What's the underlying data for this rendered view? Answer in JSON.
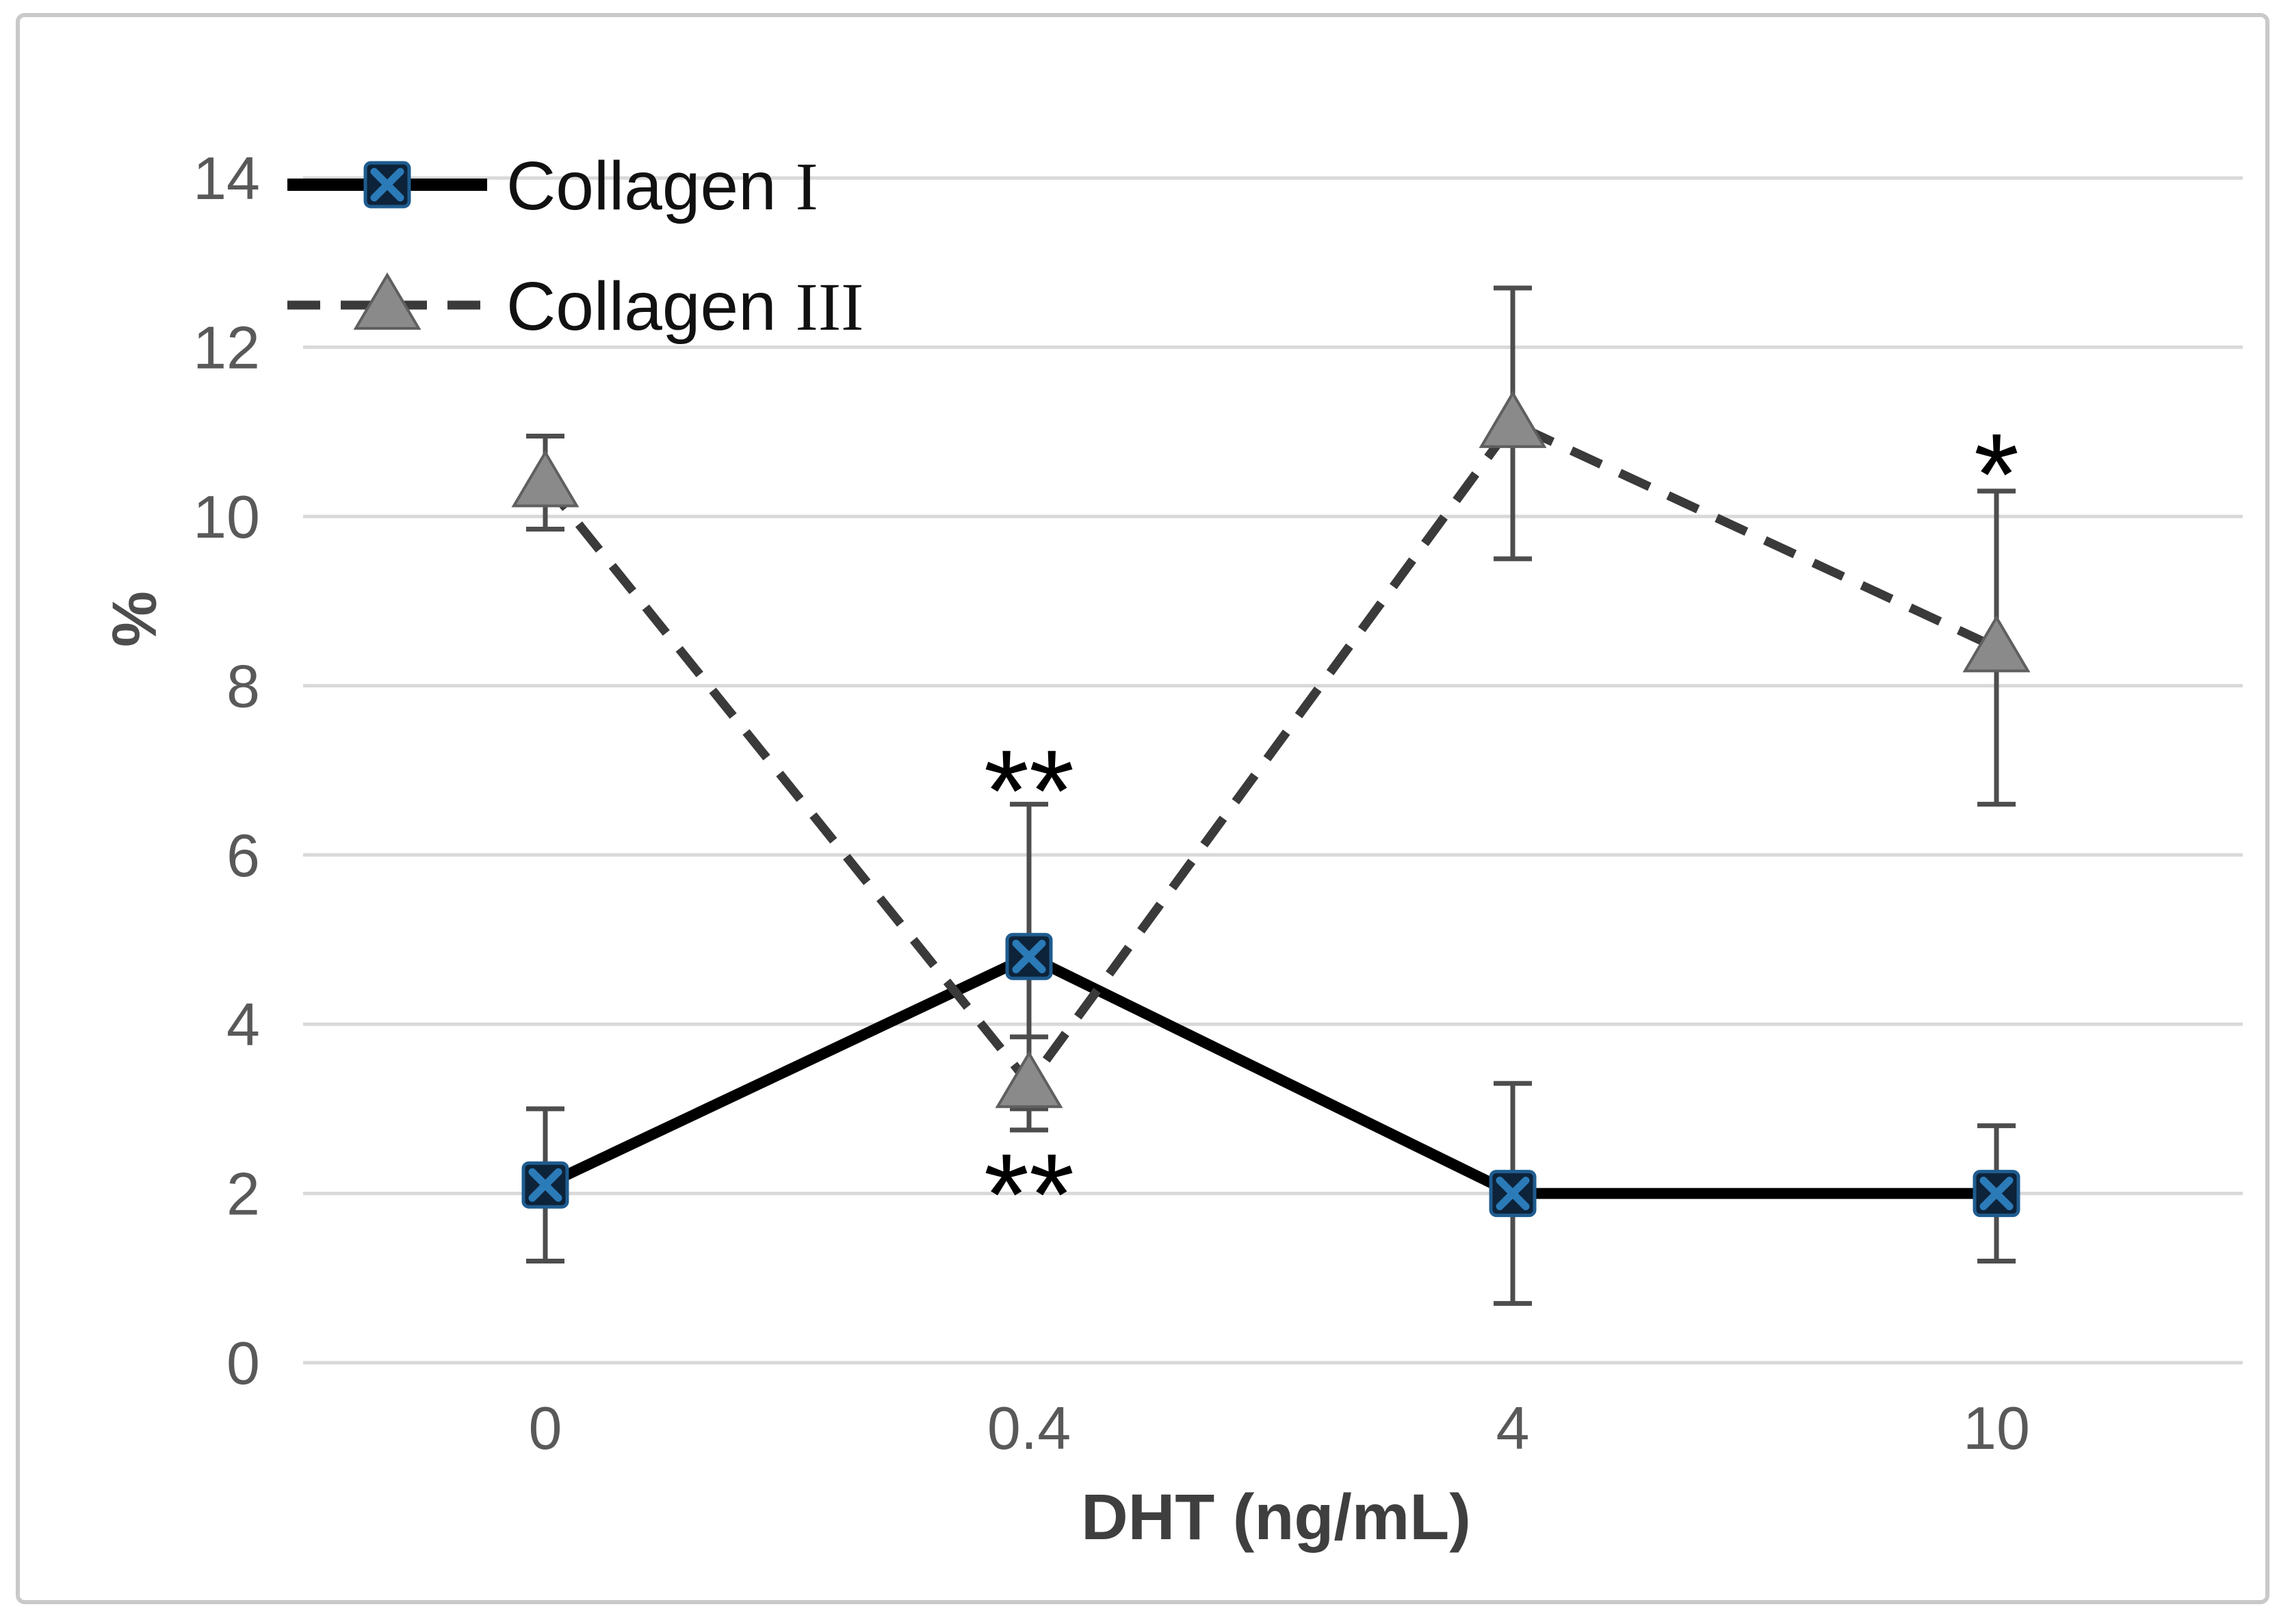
{
  "chart_data": {
    "type": "line",
    "title": "",
    "xlabel": "DHT (ng/mL)",
    "ylabel": "%",
    "x_axis_type": "categorical",
    "categories": [
      "0",
      "0.4",
      "4",
      "10"
    ],
    "y_ticks": [
      0,
      2,
      4,
      6,
      8,
      10,
      12,
      14
    ],
    "ylim": [
      0,
      14
    ],
    "grid": "horizontal",
    "legend_position": "top-left-inside",
    "series": [
      {
        "name": "Collagen I",
        "line_style": "solid",
        "line_color": "#000000",
        "marker": "square-with-x",
        "marker_fill": "#0d2339",
        "marker_border": "#1f5c8f",
        "marker_x_color": "#2b7bb9",
        "values": [
          2.1,
          4.8,
          2.0,
          2.0
        ],
        "error_bars": [
          0.9,
          1.8,
          1.3,
          0.8
        ]
      },
      {
        "name": "Collagen III",
        "line_style": "dashed",
        "line_color": "#3a3a3a",
        "marker": "triangle",
        "marker_fill": "#8a8a8a",
        "marker_border": "#5f5f5f",
        "values": [
          10.4,
          3.3,
          11.1,
          8.45
        ],
        "error_bars": [
          0.55,
          0.55,
          1.6,
          1.85
        ]
      }
    ],
    "annotations": [
      {
        "text": "**",
        "category_index": 1,
        "y_value": 6.93
      },
      {
        "text": "**",
        "category_index": 1,
        "y_value": 2.16
      },
      {
        "text": "*",
        "category_index": 3,
        "y_value": 10.67
      }
    ],
    "colors": {
      "gridline": "#d9d9d9",
      "error_bar": "#4d4d4d",
      "tick_label": "#595959",
      "axis_title": "#3f3f3f",
      "annotation": "#000000",
      "figure_border": "#c9c9c9",
      "background": "#ffffff"
    }
  }
}
